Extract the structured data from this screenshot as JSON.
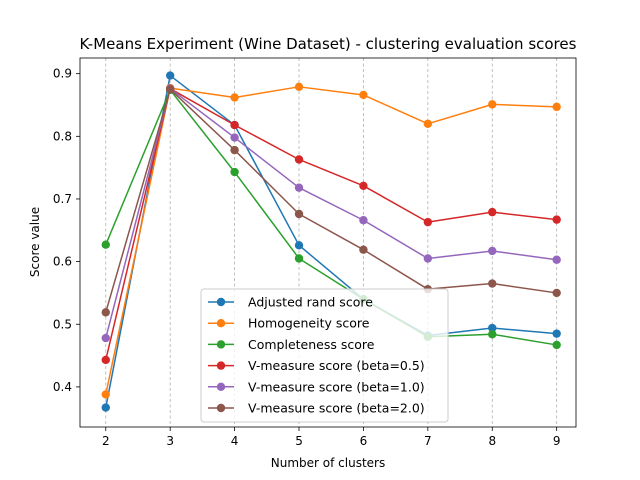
{
  "chart_data": {
    "type": "line",
    "title": "K-Means Experiment (Wine Dataset) - clustering evaluation scores",
    "xlabel": "Number of clusters",
    "ylabel": "Score value",
    "x": [
      2,
      3,
      4,
      5,
      6,
      7,
      8,
      9
    ],
    "xlim": [
      1.6,
      9.3
    ],
    "ylim": [
      0.336,
      0.925
    ],
    "xticks": [
      "2",
      "3",
      "4",
      "5",
      "6",
      "7",
      "8",
      "9"
    ],
    "yticks": [
      "0.4",
      "0.5",
      "0.6",
      "0.7",
      "0.8",
      "0.9"
    ],
    "ytick_values": [
      0.4,
      0.5,
      0.6,
      0.7,
      0.8,
      0.9
    ],
    "grid": "vertical dashed",
    "legend_position": "lower center",
    "series": [
      {
        "name": "Adjusted rand score",
        "color": "#1f77b4",
        "values": [
          0.367,
          0.897,
          0.818,
          0.626,
          0.54,
          0.482,
          0.494,
          0.485
        ]
      },
      {
        "name": "Homogeneity score",
        "color": "#ff7f0e",
        "values": [
          0.388,
          0.877,
          0.862,
          0.879,
          0.866,
          0.82,
          0.851,
          0.847
        ]
      },
      {
        "name": "Completeness score",
        "color": "#2ca02c",
        "values": [
          0.627,
          0.874,
          0.743,
          0.605,
          0.54,
          0.48,
          0.484,
          0.467
        ]
      },
      {
        "name": "V-measure score (beta=0.5)",
        "color": "#d62728",
        "values": [
          0.443,
          0.876,
          0.818,
          0.763,
          0.721,
          0.663,
          0.679,
          0.667
        ]
      },
      {
        "name": "V-measure score (beta=1.0)",
        "color": "#9467bd",
        "values": [
          0.478,
          0.876,
          0.798,
          0.718,
          0.666,
          0.605,
          0.617,
          0.603
        ]
      },
      {
        "name": "V-measure score (beta=2.0)",
        "color": "#8c564b",
        "values": [
          0.519,
          0.875,
          0.778,
          0.676,
          0.619,
          0.556,
          0.565,
          0.55
        ]
      }
    ]
  }
}
